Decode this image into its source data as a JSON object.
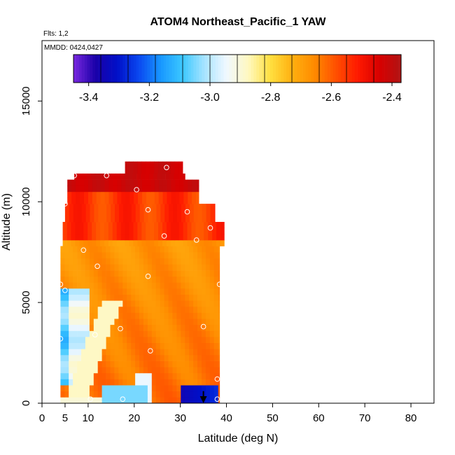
{
  "chart_data": {
    "type": "heatmap",
    "title": "ATOM4 Northeast_Pacific_1 YAW",
    "annotations": [
      "Flts: 1,2",
      "MMDD: 0424,0427"
    ],
    "xlabel": "Latitude (deg N)",
    "ylabel": "Altitude (m)",
    "xlim": [
      0,
      85
    ],
    "ylim": [
      0,
      18000
    ],
    "x_ticks": [
      0,
      5,
      10,
      20,
      30,
      40,
      50,
      60,
      70,
      80
    ],
    "y_ticks": [
      0,
      5000,
      10000,
      15000
    ],
    "colorbar": {
      "range": [
        -3.45,
        -2.37
      ],
      "ticks": [
        -3.4,
        -3.2,
        -3.0,
        -2.8,
        -2.6,
        -2.4
      ],
      "tick_labels": [
        "-3.4",
        "-3.2",
        "-3.0",
        "-2.8",
        "-2.6",
        "-2.4"
      ],
      "colors": [
        "#7a28e0",
        "#1a00a8",
        "#0010c8",
        "#0a48f0",
        "#1898ff",
        "#3cc8ff",
        "#a8e4ff",
        "#f0f8ff",
        "#fff8c0",
        "#ffe040",
        "#ffb010",
        "#ff8c00",
        "#ff5000",
        "#ff1a00",
        "#d80000",
        "#b01414"
      ]
    },
    "flight_points": [
      {
        "lat": 4.0,
        "alt": 5900
      },
      {
        "lat": 5.0,
        "alt": 5600
      },
      {
        "lat": 5.0,
        "alt": 9900
      },
      {
        "lat": 7.0,
        "alt": 11300
      },
      {
        "lat": 9.0,
        "alt": 7600
      },
      {
        "lat": 14.0,
        "alt": 11300
      },
      {
        "lat": 12.0,
        "alt": 6800
      },
      {
        "lat": 20.5,
        "alt": 10600
      },
      {
        "lat": 23.0,
        "alt": 9600
      },
      {
        "lat": 27.0,
        "alt": 11700
      },
      {
        "lat": 23.0,
        "alt": 6300
      },
      {
        "lat": 26.5,
        "alt": 8300
      },
      {
        "lat": 31.5,
        "alt": 9500
      },
      {
        "lat": 33.5,
        "alt": 8100
      },
      {
        "lat": 36.5,
        "alt": 8700
      },
      {
        "lat": 38.5,
        "alt": 5900
      },
      {
        "lat": 17.0,
        "alt": 3700
      },
      {
        "lat": 11.5,
        "alt": 3400
      },
      {
        "lat": 4.0,
        "alt": 3200
      },
      {
        "lat": 35.0,
        "alt": 3800
      },
      {
        "lat": 23.5,
        "alt": 2600
      },
      {
        "lat": 38.0,
        "alt": 1200
      },
      {
        "lat": 10.5,
        "alt": 200
      },
      {
        "lat": 17.5,
        "alt": 200
      },
      {
        "lat": 38.0,
        "alt": 200
      }
    ],
    "arrow": {
      "lat": 35.0,
      "alt_top": 600,
      "alt_bottom": 0
    }
  }
}
